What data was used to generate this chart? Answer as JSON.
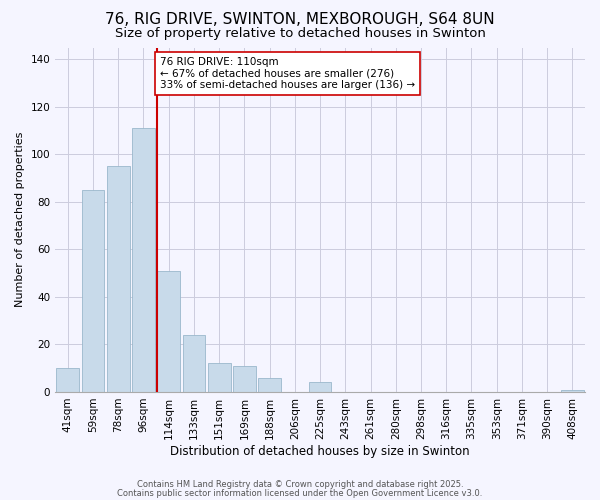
{
  "title": "76, RIG DRIVE, SWINTON, MEXBOROUGH, S64 8UN",
  "subtitle": "Size of property relative to detached houses in Swinton",
  "xlabel": "Distribution of detached houses by size in Swinton",
  "ylabel": "Number of detached properties",
  "bar_labels": [
    "41sqm",
    "59sqm",
    "78sqm",
    "96sqm",
    "114sqm",
    "133sqm",
    "151sqm",
    "169sqm",
    "188sqm",
    "206sqm",
    "225sqm",
    "243sqm",
    "261sqm",
    "280sqm",
    "298sqm",
    "316sqm",
    "335sqm",
    "353sqm",
    "371sqm",
    "390sqm",
    "408sqm"
  ],
  "bar_values": [
    10,
    85,
    95,
    111,
    51,
    24,
    12,
    11,
    6,
    0,
    4,
    0,
    0,
    0,
    0,
    0,
    0,
    0,
    0,
    0,
    1
  ],
  "bar_color": "#c8daea",
  "bar_edgecolor": "#9ab8cc",
  "redline_index": 4,
  "redline_label": "76 RIG DRIVE: 110sqm",
  "annotation_line1": "← 67% of detached houses are smaller (276)",
  "annotation_line2": "33% of semi-detached houses are larger (136) →",
  "ylim": [
    0,
    145
  ],
  "yticks": [
    0,
    20,
    40,
    60,
    80,
    100,
    120,
    140
  ],
  "background_color": "#f5f5ff",
  "footer1": "Contains HM Land Registry data © Crown copyright and database right 2025.",
  "footer2": "Contains public sector information licensed under the Open Government Licence v3.0.",
  "title_fontsize": 11,
  "subtitle_fontsize": 9.5,
  "footer_fontsize": 6.0,
  "axis_label_fontsize": 8.5,
  "tick_fontsize": 7.5,
  "ylabel_fontsize": 8.0
}
